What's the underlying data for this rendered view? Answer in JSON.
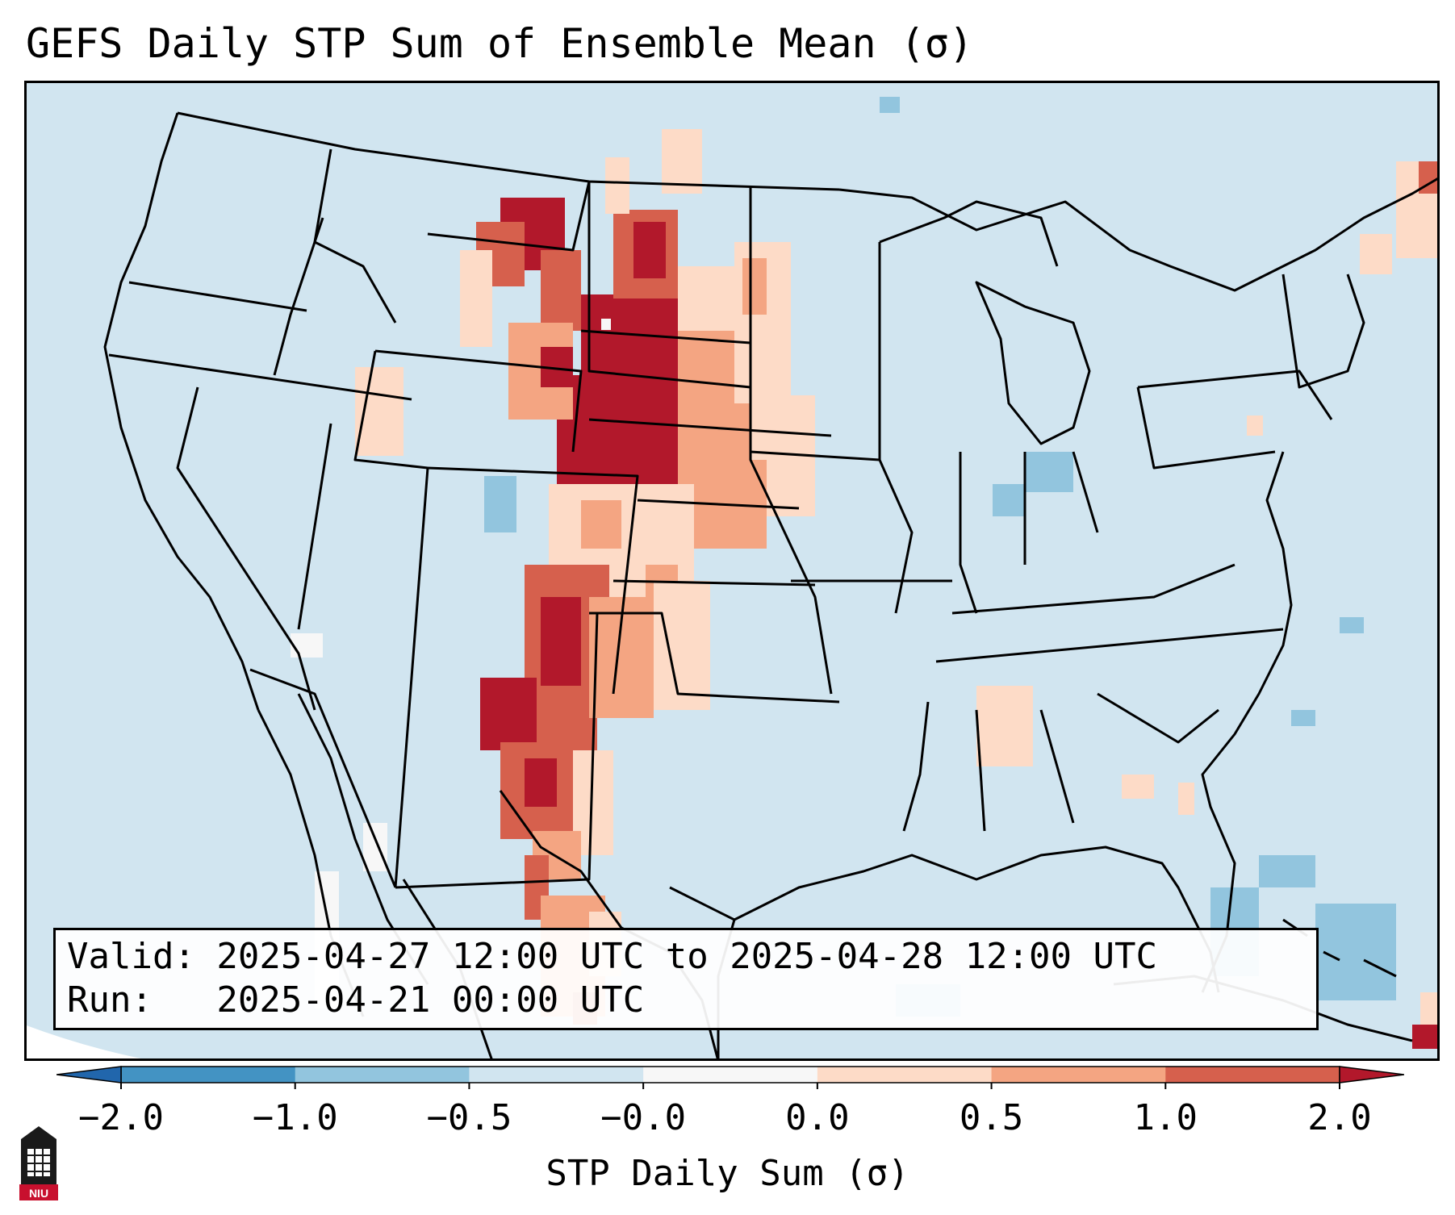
{
  "title": "GEFS Daily STP Sum of Ensemble Mean (σ)",
  "info": {
    "valid": "Valid: 2025-04-27 12:00 UTC to 2025-04-28 12:00 UTC",
    "run": "Run:   2025-04-21 00:00 UTC"
  },
  "colorbar": {
    "label": "STP Daily Sum (σ)",
    "ticks": [
      "−2.0",
      "−1.0",
      "−0.5",
      "−0.0",
      "0.0",
      "0.5",
      "1.0",
      "2.0"
    ],
    "bins": [
      {
        "from": "−2.0",
        "to": "−1.0",
        "color": "#4393c3"
      },
      {
        "from": "−1.0",
        "to": "−0.5",
        "color": "#92c5de"
      },
      {
        "from": "−0.5",
        "to": "−0.0",
        "color": "#d1e5f0"
      },
      {
        "from": "−0.0",
        "to": "0.0",
        "color": "#f7f7f7"
      },
      {
        "from": "0.0",
        "to": "0.5",
        "color": "#fddbc7"
      },
      {
        "from": "0.5",
        "to": "1.0",
        "color": "#f4a582"
      },
      {
        "from": "1.0",
        "to": "2.0",
        "color": "#d6604d"
      }
    ],
    "under_color": "#2166ac",
    "over_color": "#b2182b"
  },
  "logo_text": "NIU",
  "colors": {
    "background": "#d1e5f0",
    "max": "#b2182b",
    "strong": "#d6604d",
    "moderate": "#f4a582",
    "light": "#fddbc7",
    "neutral": "#f7f7f7",
    "negative": "#92c5de"
  }
}
